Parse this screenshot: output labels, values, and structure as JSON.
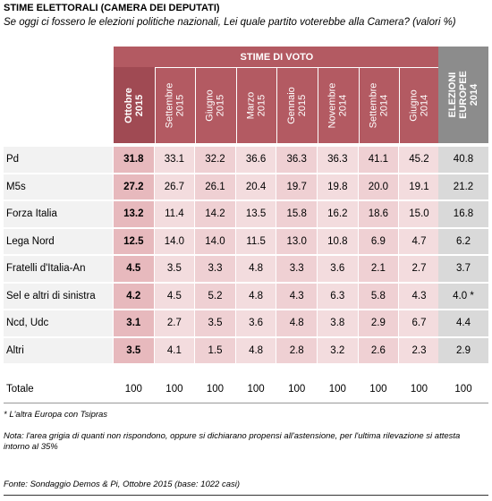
{
  "title": "STIME ELETTORALI (CAMERA DEI DEPUTATI)",
  "subtitle": "Se oggi ci fossero le elezioni politiche nazionali,  Lei quale partito voterebbe alla Camera? (valori %)",
  "group_header": "STIME DI VOTO",
  "columns": [
    {
      "label": "Ottobre\n2015",
      "bold": true
    },
    {
      "label": "Settembre\n2015"
    },
    {
      "label": "Giugno\n2015"
    },
    {
      "label": "Marzo\n2015"
    },
    {
      "label": "Gennaio\n2015"
    },
    {
      "label": "Novembre\n2014"
    },
    {
      "label": "Settembre\n2014"
    },
    {
      "label": "Giugno\n2014"
    }
  ],
  "reference_column": {
    "label": "ELEZIONI\nEUROPEE\n2014"
  },
  "rows": [
    {
      "party": "Pd",
      "values": [
        "31.8",
        "33.1",
        "32.2",
        "36.6",
        "36.3",
        "36.3",
        "41.1",
        "45.2"
      ],
      "europee": "40.8"
    },
    {
      "party": "M5s",
      "values": [
        "27.2",
        "26.7",
        "26.1",
        "20.4",
        "19.7",
        "19.8",
        "20.0",
        "19.1"
      ],
      "europee": "21.2"
    },
    {
      "party": "Forza Italia",
      "values": [
        "13.2",
        "11.4",
        "14.2",
        "13.5",
        "15.8",
        "16.2",
        "18.6",
        "15.0"
      ],
      "europee": "16.8"
    },
    {
      "party": "Lega Nord",
      "values": [
        "12.5",
        "14.0",
        "14.0",
        "11.5",
        "13.0",
        "10.8",
        "6.9",
        "4.7"
      ],
      "europee": "6.2"
    },
    {
      "party": "Fratelli d'Italia-An",
      "values": [
        "4.5",
        "3.5",
        "3.3",
        "4.8",
        "3.3",
        "3.6",
        "2.1",
        "2.7"
      ],
      "europee": "3.7"
    },
    {
      "party": "Sel e altri di sinistra",
      "values": [
        "4.2",
        "4.5",
        "5.2",
        "4.8",
        "4.3",
        "6.3",
        "5.8",
        "4.3"
      ],
      "europee": "4.0 *"
    },
    {
      "party": "Ncd, Udc",
      "values": [
        "3.1",
        "2.7",
        "3.5",
        "3.6",
        "4.8",
        "3.8",
        "2.9",
        "6.7"
      ],
      "europee": "4.4"
    },
    {
      "party": "Altri",
      "values": [
        "3.5",
        "4.1",
        "1.5",
        "4.8",
        "2.8",
        "3.2",
        "2.6",
        "2.3"
      ],
      "europee": "2.9"
    }
  ],
  "total": {
    "label": "Totale",
    "values": [
      "100",
      "100",
      "100",
      "100",
      "100",
      "100",
      "100",
      "100"
    ],
    "europee": "100"
  },
  "footnote": "* L'altra Europa con Tsipras",
  "note": "Nota: l'area grigia di quanti non rispondono, oppure si dichiarano propensi all'astensione, per l'ultima rilevazione si attesta intorno al 35%",
  "source": "Fonte: Sondaggio Demos & Pi, Ottobre 2015 (base: 1022 casi)",
  "colors": {
    "header_band": "#b35a62",
    "highlight_col": "#e7b9bd",
    "data_light": "#f3dcde",
    "data_mid": "#efd0d3",
    "row_label_bg": "#f2f2f2",
    "ref_header": "#8c8c8c",
    "ref_cell": "#d9d9d9"
  },
  "chart_data": {
    "type": "table",
    "title": "STIME ELETTORALI (CAMERA DEI DEPUTATI)",
    "categories": [
      "Ottobre 2015",
      "Settembre 2015",
      "Giugno 2015",
      "Marzo 2015",
      "Gennaio 2015",
      "Novembre 2014",
      "Settembre 2014",
      "Giugno 2014",
      "ELEZIONI EUROPEE 2014"
    ],
    "series": [
      {
        "name": "Pd",
        "values": [
          31.8,
          33.1,
          32.2,
          36.6,
          36.3,
          36.3,
          41.1,
          45.2,
          40.8
        ]
      },
      {
        "name": "M5s",
        "values": [
          27.2,
          26.7,
          26.1,
          20.4,
          19.7,
          19.8,
          20.0,
          19.1,
          21.2
        ]
      },
      {
        "name": "Forza Italia",
        "values": [
          13.2,
          11.4,
          14.2,
          13.5,
          15.8,
          16.2,
          18.6,
          15.0,
          16.8
        ]
      },
      {
        "name": "Lega Nord",
        "values": [
          12.5,
          14.0,
          14.0,
          11.5,
          13.0,
          10.8,
          6.9,
          4.7,
          6.2
        ]
      },
      {
        "name": "Fratelli d'Italia-An",
        "values": [
          4.5,
          3.5,
          3.3,
          4.8,
          3.3,
          3.6,
          2.1,
          2.7,
          3.7
        ]
      },
      {
        "name": "Sel e altri di sinistra",
        "values": [
          4.2,
          4.5,
          5.2,
          4.8,
          4.3,
          6.3,
          5.8,
          4.3,
          4.0
        ]
      },
      {
        "name": "Ncd, Udc",
        "values": [
          3.1,
          2.7,
          3.5,
          3.6,
          4.8,
          3.8,
          2.9,
          6.7,
          4.4
        ]
      },
      {
        "name": "Altri",
        "values": [
          3.5,
          4.1,
          1.5,
          4.8,
          2.8,
          3.2,
          2.6,
          2.3,
          2.9
        ]
      },
      {
        "name": "Totale",
        "values": [
          100,
          100,
          100,
          100,
          100,
          100,
          100,
          100,
          100
        ]
      }
    ]
  }
}
